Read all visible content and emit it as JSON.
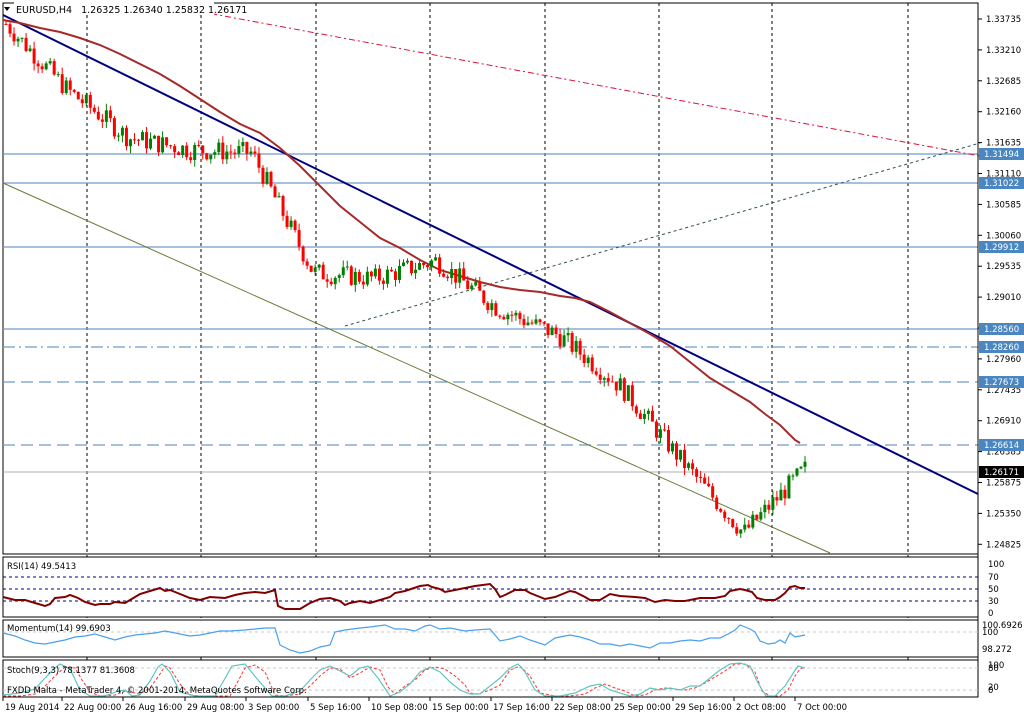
{
  "header": {
    "menu_icon": "triangle-down-icon",
    "symbol": "EURUSD,H4",
    "ohlc": "1.26325 1.26340 1.25832 1.26171"
  },
  "footer": {
    "copyright": "FXDD Malta - MetaTrader 4, © 2001-2014, MetaQuotes Software Corp."
  },
  "colors": {
    "bull_candle": "#008000",
    "bear_candle": "#ff0000",
    "ma_line": "#a52a2a",
    "trend_line": "#000080",
    "channel_line": "#6b7b3a",
    "hline": "#6f9ccc",
    "price_label_bg": "#4a87c0",
    "current_label_bg": "#000000",
    "rsi_line": "#800000",
    "momentum_line": "#4aa0ee",
    "stoch_main": "#5fc7c0",
    "stoch_signal": "#ff3333"
  },
  "price_axis": {
    "ticks": [
      "1.33735",
      "1.33210",
      "1.32685",
      "1.32160",
      "1.31635",
      "1.31110",
      "1.30585",
      "1.30060",
      "1.29535",
      "1.29010",
      "1.28485",
      "1.27960",
      "1.27435",
      "1.26910",
      "1.26385",
      "1.25875",
      "1.25350",
      "1.24825"
    ],
    "levels": [
      {
        "value": "1.31494",
        "style": "solid"
      },
      {
        "value": "1.31022",
        "style": "solid"
      },
      {
        "value": "1.29912",
        "style": "solid"
      },
      {
        "value": "1.28560",
        "style": "solid"
      },
      {
        "value": "1.28260",
        "style": "dashdot"
      },
      {
        "value": "1.27673",
        "style": "dash"
      },
      {
        "value": "1.26614",
        "style": "dash"
      }
    ],
    "current_price": "1.26171"
  },
  "time_axis": {
    "labels": [
      "19 Aug 2014",
      "22 Aug 00:00",
      "26 Aug 16:00",
      "29 Aug 08:00",
      "3 Sep 00:00",
      "5 Sep 16:00",
      "10 Sep 08:00",
      "15 Sep 00:00",
      "17 Sep 16:00",
      "22 Sep 08:00",
      "25 Sep 00:00",
      "29 Sep 16:00",
      "2 Oct 08:00",
      "7 Oct 00:00"
    ]
  },
  "indicators": {
    "rsi": {
      "title": "RSI(14) 49.5413",
      "scale": [
        "100",
        "70",
        "50",
        "30",
        "0"
      ]
    },
    "momentum": {
      "title": "Momentum(14) 99.6903",
      "scale": [
        "100.6926",
        "100",
        "98.272"
      ]
    },
    "stoch": {
      "title": "Stoch(9,3,3) 78.1377 81.3608",
      "scale": [
        "100",
        "80",
        "20",
        "0"
      ]
    }
  },
  "chart_data": {
    "type": "candlestick",
    "title": "EURUSD,H4 1.26325 1.26340 1.25832 1.26171",
    "symbol": "EURUSD",
    "timeframe": "H4",
    "last_bar": {
      "open": 1.26325,
      "high": 1.2634,
      "low": 1.25832,
      "close": 1.26171
    },
    "ylim": [
      1.2475,
      1.3395
    ],
    "x_tick_labels": [
      "19 Aug 2014",
      "22 Aug 00:00",
      "26 Aug 16:00",
      "29 Aug 08:00",
      "3 Sep 00:00",
      "5 Sep 16:00",
      "10 Sep 08:00",
      "15 Sep 00:00",
      "17 Sep 16:00",
      "22 Sep 08:00",
      "25 Sep 00:00",
      "29 Sep 16:00",
      "2 Oct 08:00",
      "7 Oct 00:00"
    ],
    "y_tick_labels": [
      1.33735,
      1.3321,
      1.32685,
      1.3216,
      1.31635,
      1.3111,
      1.30585,
      1.3006,
      1.29535,
      1.2901,
      1.28485,
      1.2796,
      1.27435,
      1.2691,
      1.26385,
      1.25875,
      1.2535,
      1.24825
    ],
    "approx_close_path": [
      {
        "x": "19 Aug 2014",
        "close": 1.336
      },
      {
        "x": "22 Aug 00:00",
        "close": 1.325
      },
      {
        "x": "26 Aug 16:00",
        "close": 1.317
      },
      {
        "x": "29 Aug 08:00",
        "close": 1.315
      },
      {
        "x": "3 Sep 00:00",
        "close": 1.3145
      },
      {
        "x": "5 Sep 16:00",
        "close": 1.2945
      },
      {
        "x": "10 Sep 08:00",
        "close": 1.2935
      },
      {
        "x": "15 Sep 00:00",
        "close": 1.2965
      },
      {
        "x": "17 Sep 16:00",
        "close": 1.2885
      },
      {
        "x": "22 Sep 08:00",
        "close": 1.284
      },
      {
        "x": "25 Sep 00:00",
        "close": 1.2755
      },
      {
        "x": "29 Sep 16:00",
        "close": 1.263
      },
      {
        "x": "2 Oct 08:00",
        "close": 1.251
      },
      {
        "x": "7 Oct 00:00",
        "close": 1.2617
      }
    ],
    "horizontal_levels": [
      1.31494,
      1.31022,
      1.29912,
      1.2856,
      1.2826,
      1.27673,
      1.26614
    ],
    "current_price_line": 1.26171,
    "trend_lines": [
      {
        "name": "main downtrend",
        "color": "#000080",
        "from": [
          0,
          1.3375
        ],
        "to": [
          1024,
          1.2563
        ]
      },
      {
        "name": "lower channel",
        "color": "#6b7b3a",
        "from": [
          0,
          1.3107
        ],
        "to": [
          830,
          1.248
        ]
      },
      {
        "name": "rising dotted",
        "color": "#2f4f4f",
        "from": [
          345,
          1.2858
        ],
        "to": [
          980,
          1.3163
        ]
      },
      {
        "name": "red dashed",
        "color": "#dc143c",
        "from": [
          170,
          1.3385
        ],
        "to": [
          980,
          1.3148
        ]
      }
    ],
    "indicators": {
      "RSI(14)": {
        "last": 49.5413,
        "levels": [
          70,
          50,
          30
        ],
        "range": [
          0,
          100
        ]
      },
      "Momentum(14)": {
        "last": 99.6903,
        "range": [
          98.272,
          100.6926
        ],
        "level": 100
      },
      "Stoch(9,3,3)": {
        "main": 78.1377,
        "signal": 81.3608,
        "levels": [
          80,
          20
        ],
        "range": [
          0,
          100
        ]
      }
    },
    "grid": "vertical dotted separators",
    "legend": "none"
  }
}
